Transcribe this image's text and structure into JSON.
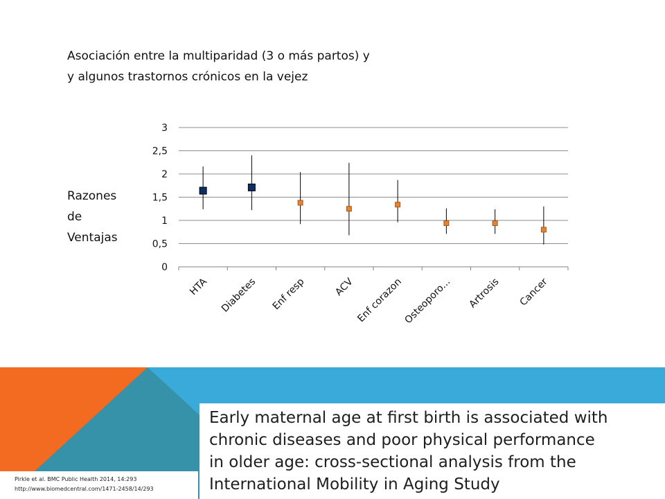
{
  "slide": {
    "title_line1": "Asociación entre la multiparidad (3 o más partos)  y",
    "title_line2": "y algunos trastornos crónicos en la vejez",
    "ylabel_lines": [
      "Razones",
      "de",
      "Ventajas"
    ],
    "citation_line1": "Pirkle et al. BMC Public Health 2014, 14:293",
    "citation_line2": "http://www.biomedcentral.com/1471-2458/14/293",
    "paper_title_lines": [
      "Early maternal age at first birth is associated with",
      "chronic diseases and poor physical performance",
      "in older age: cross-sectional analysis from the",
      "International Mobility in Aging Study"
    ],
    "colors": {
      "orange": "#f26b21",
      "blue": "#3aaadb",
      "teal": "#3592a8",
      "marker_significant": "#0b2e6b",
      "marker_regular": "#e8822f"
    }
  },
  "chart_data": {
    "type": "scatter",
    "categories": [
      "HTA",
      "Diabetes",
      "Enf resp",
      "ACV",
      "Enf corazon",
      "Osteoporo...",
      "Artrosis",
      "Cancer"
    ],
    "series": [
      {
        "values": [
          1.64,
          1.71,
          1.38,
          1.25,
          1.34,
          0.94,
          0.94,
          0.8
        ],
        "lower": [
          1.24,
          1.22,
          0.92,
          0.68,
          0.96,
          0.71,
          0.71,
          0.48
        ],
        "upper": [
          2.16,
          2.4,
          2.04,
          2.24,
          1.87,
          1.26,
          1.24,
          1.3
        ],
        "highlight": [
          true,
          true,
          false,
          false,
          false,
          false,
          false,
          false
        ]
      }
    ],
    "ylim": [
      0,
      3
    ],
    "yticks": [
      "0",
      "0,5",
      "1",
      "1,5",
      "2",
      "2,5",
      "3"
    ],
    "ytick_values": [
      0,
      0.5,
      1,
      1.5,
      2,
      2.5,
      3
    ],
    "grid": true
  }
}
